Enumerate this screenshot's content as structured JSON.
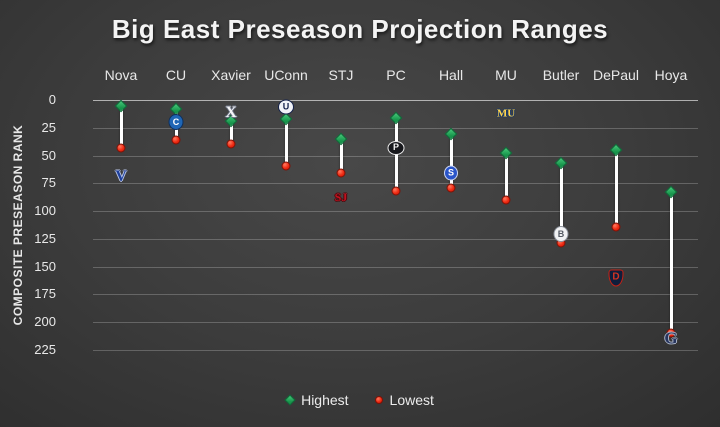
{
  "title": "Big East Preseason Projection Ranges",
  "y_axis": {
    "label": "COMPOSITE PRESEASON RANK"
  },
  "legend": [
    {
      "label": "Highest",
      "marker": "green-diamond"
    },
    {
      "label": "Lowest",
      "marker": "red-dot"
    }
  ],
  "colors": {
    "highest": "#21a04f",
    "lowest": "#ef2a12",
    "line": "#ffffff",
    "grid": "rgba(255,255,255,0.22)",
    "text": "#e8e8e8"
  },
  "chart_data": {
    "type": "scatter",
    "subtype": "dumbbell-range",
    "title": "Big East Preseason Projection Ranges",
    "xlabel": "",
    "ylabel": "COMPOSITE PRESEASON RANK",
    "ylim": [
      0,
      225
    ],
    "y_inverted": true,
    "yticks": [
      0,
      25,
      50,
      75,
      100,
      125,
      150,
      175,
      200,
      225
    ],
    "grid": true,
    "legend_position": "bottom",
    "categories": [
      "Nova",
      "CU",
      "Xavier",
      "UConn",
      "STJ",
      "PC",
      "Hall",
      "MU",
      "Butler",
      "DePaul",
      "Hoya"
    ],
    "series": [
      {
        "name": "Highest",
        "values": [
          5,
          8,
          19,
          17,
          35,
          16,
          31,
          48,
          57,
          45,
          83
        ]
      },
      {
        "name": "Lowest",
        "values": [
          43,
          36,
          40,
          59,
          66,
          82,
          79,
          90,
          129,
          114,
          210
        ]
      }
    ],
    "logo_rank_positions": [
      69,
      20,
      12,
      6,
      87,
      43,
      66,
      13,
      121,
      160,
      214
    ],
    "logos": [
      {
        "name": "villanova-v-logo",
        "kind": "text",
        "text": "V",
        "color": "#1e3f9b",
        "outline": "#b9c6e8",
        "size": 16
      },
      {
        "name": "creighton-bluejay-logo",
        "kind": "circle",
        "text": "C",
        "color": "#ffffff",
        "bg": "#1f66b5",
        "border": "#0d2f5e",
        "size": 9,
        "w": 15,
        "h": 16
      },
      {
        "name": "xavier-x-logo",
        "kind": "text",
        "text": "X",
        "color": "#f4f4f6",
        "outline": "#6e7689",
        "size": 16
      },
      {
        "name": "uconn-husky-logo",
        "kind": "circle",
        "text": "U",
        "color": "#13204a",
        "bg": "#f0f2f7",
        "border": "#13204a",
        "size": 9,
        "w": 16,
        "h": 15
      },
      {
        "name": "st-johns-sj-logo",
        "kind": "text",
        "text": "SJ",
        "color": "#c0121f",
        "outline": "#4f080d",
        "size": 12
      },
      {
        "name": "providence-friar-logo",
        "kind": "circle",
        "text": "P",
        "color": "#f5f5f5",
        "bg": "#17181c",
        "border": "#e9e9e9",
        "size": 9,
        "w": 17,
        "h": 14
      },
      {
        "name": "seton-hall-pirate-logo",
        "kind": "circle",
        "text": "S",
        "color": "#ffffff",
        "bg": "#2a55c9",
        "border": "#cfd9f6",
        "size": 9,
        "w": 14,
        "h": 15
      },
      {
        "name": "marquette-mu-logo",
        "kind": "text",
        "text": "MU",
        "color": "#ffd24a",
        "outline": "#1a3a6b",
        "size": 11
      },
      {
        "name": "butler-bulldog-logo",
        "kind": "circle",
        "text": "B",
        "color": "#555a64",
        "bg": "#f1f2f4",
        "border": "#8d929c",
        "size": 9,
        "w": 15,
        "h": 16
      },
      {
        "name": "depaul-demon-logo",
        "kind": "shield",
        "text": "D",
        "color": "#d33322",
        "bg": "#0f1e3c",
        "border": "#c72114",
        "size": 10,
        "w": 15,
        "h": 17
      },
      {
        "name": "georgetown-g-logo",
        "kind": "text",
        "text": "G",
        "color": "#27355e",
        "outline": "#aab3c6",
        "size": 17
      }
    ]
  }
}
